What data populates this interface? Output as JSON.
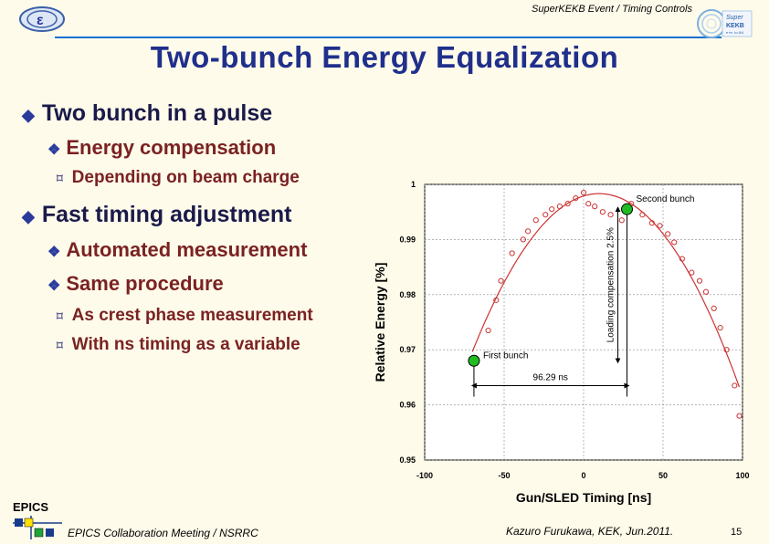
{
  "header": {
    "text": "SuperKEKB Event / Timing Controls"
  },
  "title": "Two-bunch Energy  Equalization",
  "bullets": {
    "b1": "Two bunch in a pulse",
    "b1_1": "Energy compensation",
    "b1_1_1": "Depending on beam charge",
    "b2": "Fast timing adjustment",
    "b2_1": "Automated measurement",
    "b2_2": "Same procedure",
    "b2_2_1": "As crest phase measurement",
    "b2_2_2": "With ns timing as a variable"
  },
  "footer": {
    "epics": "EPICS",
    "left": "EPICS Collaboration Meeting / NSRRC",
    "right": "Kazuro Furukawa, KEK, Jun.2011.",
    "page": "15"
  },
  "colors": {
    "title": "#1f2f8c",
    "bullet_l1": "#1a1a4a",
    "bullet_l2": "#7a2222",
    "curve": "#cc3333",
    "marker": "#22bb22"
  },
  "chart_data": {
    "type": "scatter",
    "xlabel": "Gun/SLED Timing [ns]",
    "ylabel": "Relative Energy [%]",
    "xlim": [
      -100,
      100
    ],
    "ylim": [
      0.95,
      1.0
    ],
    "xticks": [
      "-100",
      "-50",
      "0",
      "50",
      "100"
    ],
    "yticks": [
      "0.95",
      "0.96",
      "0.97",
      "0.98",
      "0.99",
      "1"
    ],
    "grid": true,
    "points_x": [
      -68,
      -60,
      -55,
      -52,
      -45,
      -38,
      -35,
      -30,
      -24,
      -20,
      -15,
      -10,
      -5,
      0,
      3,
      7,
      12,
      17,
      24,
      30,
      37,
      43,
      48,
      53,
      57,
      62,
      68,
      73,
      77,
      82,
      86,
      90,
      95,
      98
    ],
    "points_y": [
      0.9685,
      0.9735,
      0.979,
      0.9825,
      0.9875,
      0.99,
      0.9915,
      0.9935,
      0.9945,
      0.9955,
      0.996,
      0.9965,
      0.9975,
      0.9985,
      0.9965,
      0.996,
      0.995,
      0.9945,
      0.9935,
      0.9965,
      0.9945,
      0.993,
      0.9925,
      0.991,
      0.9895,
      0.9865,
      0.984,
      0.9825,
      0.9805,
      0.9775,
      0.974,
      0.97,
      0.9635,
      0.958
    ],
    "first_bunch": {
      "label": "First bunch",
      "x": -69,
      "y": 0.968
    },
    "second_bunch": {
      "label": "Second bunch",
      "x": 27.3,
      "y": 0.9955
    },
    "dt_label": "96.29 ns",
    "comp_label": "Loading compensation 2.5%"
  }
}
